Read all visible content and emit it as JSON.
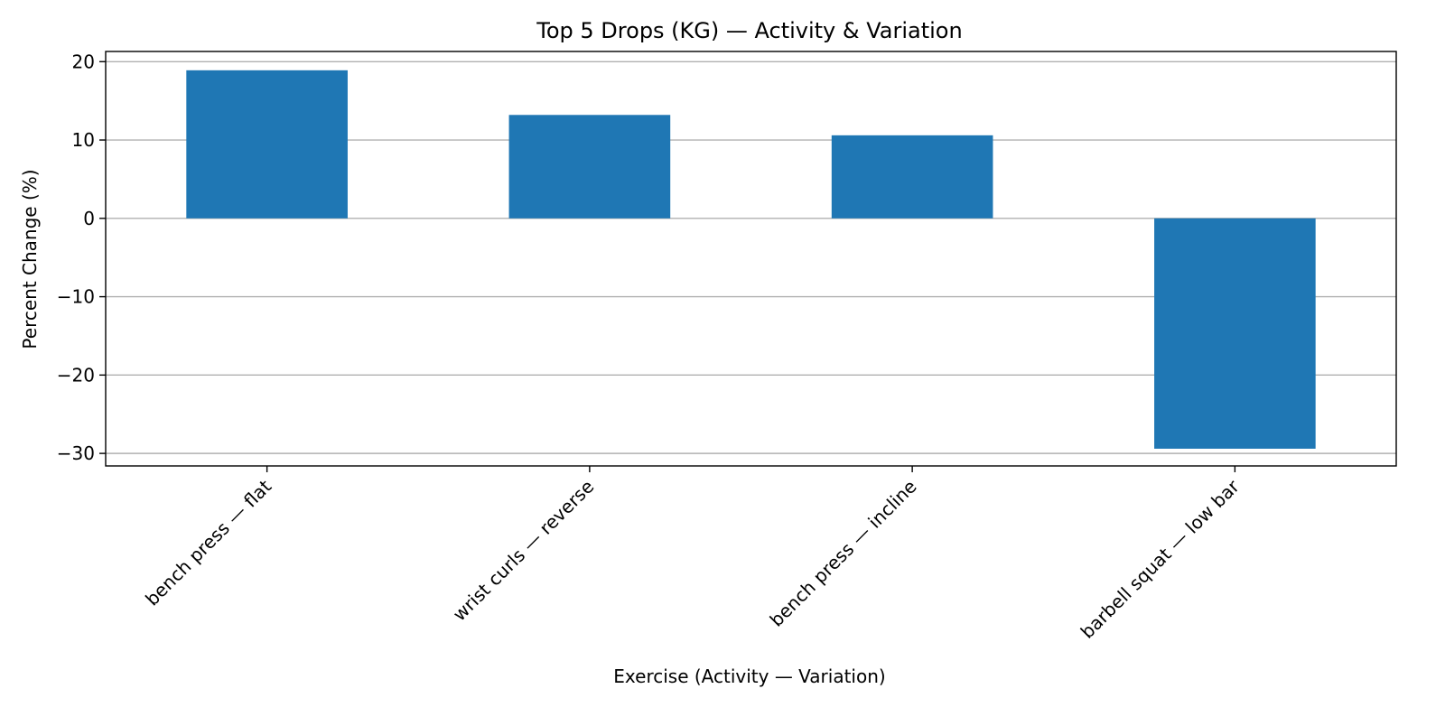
{
  "chart_data": {
    "type": "bar",
    "title": "Top 5 Drops (KG) — Activity & Variation",
    "xlabel": "Exercise (Activity — Variation)",
    "ylabel": "Percent Change (%)",
    "categories": [
      "bench press — flat",
      "wrist curls — reverse",
      "bench press — incline",
      "barbell squat — low bar"
    ],
    "values": [
      18.9,
      13.2,
      10.6,
      -29.4
    ],
    "ylim": [
      -31.6,
      21.3
    ],
    "yticks": [
      -30,
      -20,
      -10,
      0,
      10,
      20
    ],
    "grid": "horizontal",
    "legend": "none",
    "colors": {
      "bar": "#1f77b4",
      "grid": "#b0b0b0",
      "axis": "#000000"
    }
  }
}
